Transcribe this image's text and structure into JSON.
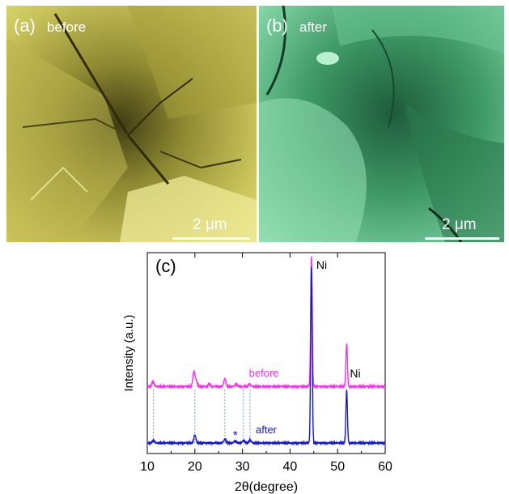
{
  "panel_a": {
    "label": "(a)",
    "caption": "before",
    "scale_bar": "2 μm",
    "tint": "#d8d064"
  },
  "panel_b": {
    "label": "(b)",
    "caption": "after",
    "scale_bar": "2 μm",
    "tint": "#5fc089"
  },
  "chart_data": {
    "type": "line",
    "label": "(c)",
    "xlabel": "2θ(degree)",
    "ylabel": "Intensity (a.u.)",
    "xlim": [
      10,
      60
    ],
    "xticks": [
      10,
      20,
      30,
      40,
      50,
      60
    ],
    "grid": false,
    "y_units": "arbitrary (offset traces)",
    "reference_lines_x": [
      11.3,
      20,
      26.3,
      30.2,
      31.6
    ],
    "annotations": [
      {
        "text": "Ni",
        "x": 44.5
      },
      {
        "text": "Ni",
        "x": 51.9
      },
      {
        "text": "*",
        "x": 28.5
      }
    ],
    "series": [
      {
        "name": "before",
        "color": "#ff2cf0",
        "baseline": 0.32,
        "peaks": [
          {
            "x": 11.2,
            "h": 0.03
          },
          {
            "x": 19.8,
            "h": 0.085
          },
          {
            "x": 20.3,
            "h": 0.03
          },
          {
            "x": 23.0,
            "h": 0.015
          },
          {
            "x": 26.3,
            "h": 0.045
          },
          {
            "x": 28.7,
            "h": 0.015
          },
          {
            "x": 31.5,
            "h": 0.015
          },
          {
            "x": 44.5,
            "h": 0.74
          },
          {
            "x": 51.9,
            "h": 0.24
          }
        ]
      },
      {
        "name": "after",
        "color": "#1515e0",
        "baseline": 0.0,
        "peaks": [
          {
            "x": 11.3,
            "h": 0.015
          },
          {
            "x": 20.0,
            "h": 0.045
          },
          {
            "x": 26.3,
            "h": 0.022
          },
          {
            "x": 28.5,
            "h": 0.012
          },
          {
            "x": 30.2,
            "h": 0.015
          },
          {
            "x": 31.6,
            "h": 0.018
          },
          {
            "x": 44.5,
            "h": 1.0
          },
          {
            "x": 51.9,
            "h": 0.3
          }
        ]
      }
    ]
  }
}
